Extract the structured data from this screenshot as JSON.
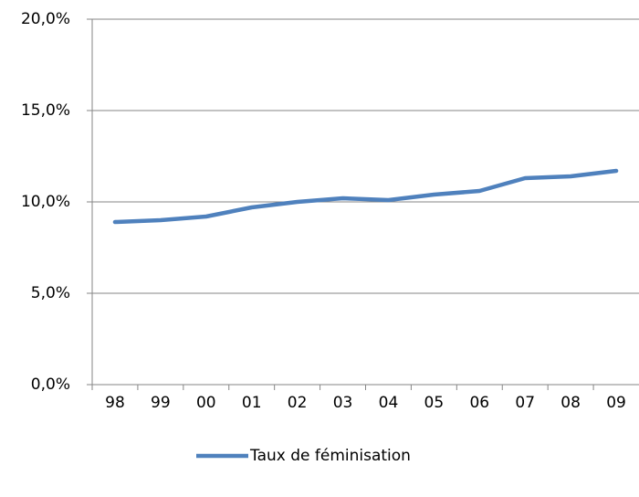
{
  "chart_data": {
    "type": "line",
    "categories": [
      "98",
      "99",
      "00",
      "01",
      "02",
      "03",
      "04",
      "05",
      "06",
      "07",
      "08",
      "09"
    ],
    "series": [
      {
        "name": "Taux de féminisation",
        "color": "#4f81bd",
        "values": [
          8.9,
          9.0,
          9.2,
          9.7,
          10.0,
          10.2,
          10.1,
          10.4,
          10.6,
          11.3,
          11.4,
          11.7
        ]
      }
    ],
    "ylim": [
      0,
      20
    ],
    "yticks": [
      {
        "value": 0,
        "label": "0,0%"
      },
      {
        "value": 5,
        "label": "5,0%"
      },
      {
        "value": 10,
        "label": "10,0%"
      },
      {
        "value": 15,
        "label": "15,0%"
      },
      {
        "value": 20,
        "label": "20,0%"
      }
    ],
    "grid": true,
    "legend": "bottom"
  }
}
